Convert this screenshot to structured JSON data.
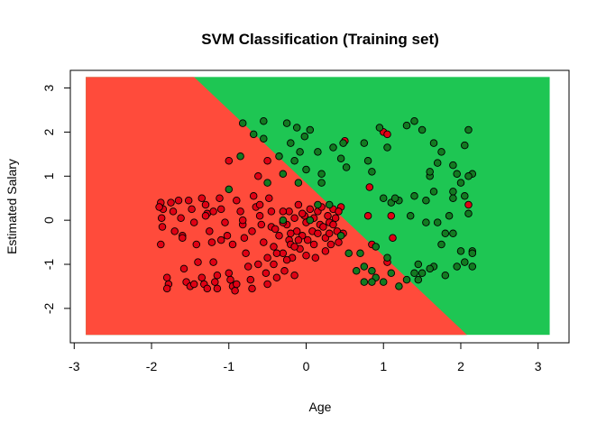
{
  "chart_data": {
    "type": "scatter",
    "title": "SVM Classification (Training set)",
    "xlabel": "Age",
    "ylabel": "Estimated Salary",
    "xlim": [
      -3.05,
      3.4
    ],
    "ylim": [
      -2.78,
      3.4
    ],
    "x_ticks": [
      -3,
      -2,
      -1,
      0,
      1,
      2,
      3
    ],
    "y_ticks": [
      -2,
      -1,
      0,
      1,
      2,
      3
    ],
    "x_tick_labels": [
      "-3",
      "-2",
      "-1",
      "0",
      "1",
      "2",
      "3"
    ],
    "y_tick_labels": [
      "-2",
      "-1",
      "0",
      "1",
      "2",
      "3"
    ],
    "grid": false,
    "legend": "none",
    "decision_region": {
      "x_range": [
        -2.85,
        3.15
      ],
      "y_range": [
        -2.6,
        3.25
      ],
      "boundary": [
        [
          -1.45,
          3.25
        ],
        [
          2.08,
          -2.6
        ]
      ],
      "class_0_color": "#ff4b3b",
      "class_1_color": "#1ec653"
    },
    "series": [
      {
        "class": 0,
        "color": "#e00014",
        "points": [
          [
            -1.88,
            0.4
          ],
          [
            -1.85,
            0.25
          ],
          [
            -1.87,
            0.05
          ],
          [
            -1.86,
            -0.15
          ],
          [
            -1.88,
            -0.55
          ],
          [
            -1.8,
            -1.3
          ],
          [
            -1.78,
            -1.45
          ],
          [
            -1.8,
            -1.55
          ],
          [
            -1.75,
            0.4
          ],
          [
            -1.72,
            0.2
          ],
          [
            -1.7,
            -0.25
          ],
          [
            -1.65,
            0.45
          ],
          [
            -1.62,
            0.05
          ],
          [
            -1.6,
            -0.35
          ],
          [
            -1.58,
            -1.1
          ],
          [
            -1.55,
            -1.4
          ],
          [
            -1.5,
            -1.5
          ],
          [
            -1.52,
            0.45
          ],
          [
            -1.48,
            0.25
          ],
          [
            -1.45,
            -0.05
          ],
          [
            -1.42,
            -0.55
          ],
          [
            -1.4,
            -0.95
          ],
          [
            -1.35,
            -1.3
          ],
          [
            -1.32,
            -1.45
          ],
          [
            -1.3,
            0.35
          ],
          [
            -1.28,
            0.15
          ],
          [
            -1.25,
            -0.25
          ],
          [
            -1.22,
            -0.5
          ],
          [
            -1.2,
            -0.95
          ],
          [
            -1.18,
            -1.4
          ],
          [
            -1.15,
            -1.55
          ],
          [
            -1.12,
            0.5
          ],
          [
            -1.1,
            0.25
          ],
          [
            -1.05,
            -0.05
          ],
          [
            -1.02,
            -0.35
          ],
          [
            -1.0,
            -1.2
          ],
          [
            -0.98,
            -1.35
          ],
          [
            -0.95,
            -1.5
          ],
          [
            -0.92,
            -1.6
          ],
          [
            -0.9,
            0.45
          ],
          [
            -1.35,
            0.5
          ],
          [
            -1.3,
            0.1
          ],
          [
            -1.28,
            -1.55
          ],
          [
            -1.0,
            1.35
          ],
          [
            -0.85,
            0.2
          ],
          [
            -0.82,
            -0.1
          ],
          [
            -0.8,
            -0.4
          ],
          [
            -0.78,
            -0.75
          ],
          [
            -0.75,
            -1.05
          ],
          [
            -0.72,
            -1.35
          ],
          [
            -0.7,
            -1.55
          ],
          [
            -0.68,
            0.55
          ],
          [
            -0.65,
            0.3
          ],
          [
            -0.62,
            1.0
          ],
          [
            -0.6,
            0.35
          ],
          [
            -0.58,
            -0.1
          ],
          [
            -0.55,
            -0.5
          ],
          [
            -0.52,
            -1.2
          ],
          [
            -0.5,
            -1.45
          ],
          [
            -0.5,
            1.35
          ],
          [
            -0.48,
            0.5
          ],
          [
            -0.45,
            0.2
          ],
          [
            -0.45,
            -0.15
          ],
          [
            -0.42,
            -0.6
          ],
          [
            -0.42,
            -1.0
          ],
          [
            -0.38,
            -1.3
          ],
          [
            -0.35,
            -0.35
          ],
          [
            -0.3,
            -0.75
          ],
          [
            -0.28,
            -1.15
          ],
          [
            -0.25,
            -0.1
          ],
          [
            -0.22,
            0.2
          ],
          [
            -0.22,
            -0.45
          ],
          [
            -0.2,
            -0.55
          ],
          [
            -0.18,
            -0.85
          ],
          [
            -0.15,
            -1.25
          ],
          [
            -0.15,
            0.05
          ],
          [
            -0.12,
            -0.25
          ],
          [
            -0.1,
            0.35
          ],
          [
            -0.08,
            -0.65
          ],
          [
            -0.05,
            -0.35
          ],
          [
            -0.02,
            0.1
          ],
          [
            0.0,
            -0.05
          ],
          [
            0.02,
            -0.45
          ],
          [
            0.05,
            0.25
          ],
          [
            0.08,
            -0.25
          ],
          [
            0.1,
            -0.55
          ],
          [
            0.12,
            -0.85
          ],
          [
            0.15,
            0.2
          ],
          [
            0.18,
            -0.1
          ],
          [
            0.2,
            0.3
          ],
          [
            0.22,
            -0.15
          ],
          [
            0.25,
            -0.4
          ],
          [
            0.28,
            0.1
          ],
          [
            0.3,
            -0.05
          ],
          [
            0.32,
            -0.55
          ],
          [
            0.35,
            0.25
          ],
          [
            0.38,
            0.05
          ],
          [
            0.4,
            -0.25
          ],
          [
            0.42,
            -0.5
          ],
          [
            0.45,
            0.3
          ],
          [
            -1.9,
            0.3
          ],
          [
            -1.6,
            -0.4
          ],
          [
            -1.15,
            -1.25
          ],
          [
            -0.95,
            -0.55
          ],
          [
            -0.82,
            0.0
          ],
          [
            -0.7,
            -0.25
          ],
          [
            -0.62,
            -1.0
          ],
          [
            -0.38,
            -0.75
          ],
          [
            -0.25,
            -0.9
          ],
          [
            -0.1,
            -0.45
          ],
          [
            0.5,
            1.8
          ],
          [
            1.0,
            2.0
          ],
          [
            1.05,
            1.95
          ],
          [
            1.1,
            0.1
          ],
          [
            1.12,
            -0.4
          ],
          [
            0.82,
            0.75
          ],
          [
            0.8,
            0.1
          ],
          [
            0.85,
            -0.55
          ],
          [
            1.05,
            -0.95
          ],
          [
            2.1,
            0.35
          ],
          [
            -0.2,
            -0.3
          ],
          [
            -0.05,
            0.15
          ],
          [
            0.15,
            -0.3
          ],
          [
            0.35,
            -0.1
          ],
          [
            0.42,
            0.2
          ],
          [
            -0.3,
            -0.05
          ],
          [
            -0.5,
            -0.85
          ],
          [
            -1.1,
            -0.45
          ],
          [
            -1.45,
            -1.45
          ],
          [
            -0.9,
            -1.45
          ],
          [
            -0.3,
            0.2
          ],
          [
            0.25,
            -0.7
          ],
          [
            0.0,
            -0.8
          ],
          [
            -0.4,
            -0.2
          ],
          [
            -1.2,
            0.2
          ],
          [
            -0.6,
            0.1
          ],
          [
            0.1,
            0.05
          ],
          [
            0.48,
            -0.3
          ],
          [
            0.3,
            -0.3
          ],
          [
            -0.15,
            -0.6
          ]
        ]
      },
      {
        "class": 1,
        "color": "#137a21",
        "points": [
          [
            -0.82,
            2.2
          ],
          [
            -0.55,
            2.25
          ],
          [
            -0.68,
            1.95
          ],
          [
            -0.55,
            1.85
          ],
          [
            -0.25,
            2.2
          ],
          [
            -0.12,
            2.1
          ],
          [
            0.05,
            2.05
          ],
          [
            -0.02,
            1.9
          ],
          [
            -0.2,
            1.75
          ],
          [
            -0.08,
            1.55
          ],
          [
            -0.35,
            1.45
          ],
          [
            -0.15,
            1.35
          ],
          [
            0.15,
            1.55
          ],
          [
            0.35,
            1.65
          ],
          [
            0.45,
            1.4
          ],
          [
            0.0,
            1.15
          ],
          [
            0.2,
            1.05
          ],
          [
            -0.3,
            1.05
          ],
          [
            -0.1,
            0.85
          ],
          [
            0.3,
            0.35
          ],
          [
            0.15,
            0.35
          ],
          [
            0.05,
            0.0
          ],
          [
            0.52,
            1.2
          ],
          [
            0.48,
            1.75
          ],
          [
            0.75,
            1.75
          ],
          [
            0.95,
            2.1
          ],
          [
            1.05,
            1.65
          ],
          [
            1.3,
            2.15
          ],
          [
            1.4,
            2.25
          ],
          [
            1.5,
            2.05
          ],
          [
            1.65,
            1.75
          ],
          [
            1.75,
            1.55
          ],
          [
            1.9,
            1.25
          ],
          [
            2.1,
            2.05
          ],
          [
            2.05,
            1.7
          ],
          [
            2.15,
            1.05
          ],
          [
            2.0,
            0.85
          ],
          [
            1.9,
            0.65
          ],
          [
            2.05,
            0.55
          ],
          [
            2.1,
            0.15
          ],
          [
            1.65,
            0.65
          ],
          [
            1.55,
            0.45
          ],
          [
            1.4,
            0.55
          ],
          [
            1.2,
            0.45
          ],
          [
            1.1,
            0.4
          ],
          [
            1.0,
            0.5
          ],
          [
            1.85,
            0.1
          ],
          [
            1.7,
            -0.05
          ],
          [
            1.55,
            -0.05
          ],
          [
            1.35,
            0.1
          ],
          [
            1.8,
            -0.3
          ],
          [
            1.75,
            -0.55
          ],
          [
            1.9,
            -0.3
          ],
          [
            2.0,
            -0.7
          ],
          [
            2.05,
            -0.95
          ],
          [
            2.15,
            -0.7
          ],
          [
            2.15,
            -1.05
          ],
          [
            1.95,
            -1.05
          ],
          [
            1.8,
            -1.25
          ],
          [
            1.65,
            -1.05
          ],
          [
            1.6,
            -1.1
          ],
          [
            1.5,
            -1.2
          ],
          [
            1.45,
            -1.0
          ],
          [
            1.4,
            -1.2
          ],
          [
            1.3,
            -1.35
          ],
          [
            1.2,
            -1.5
          ],
          [
            1.0,
            -1.4
          ],
          [
            0.9,
            -1.3
          ],
          [
            0.85,
            -1.15
          ],
          [
            0.75,
            -1.05
          ],
          [
            0.65,
            -1.15
          ],
          [
            0.55,
            -0.75
          ],
          [
            0.45,
            -0.35
          ],
          [
            0.7,
            -0.75
          ],
          [
            0.9,
            -0.6
          ],
          [
            1.05,
            -0.85
          ],
          [
            1.1,
            -1.2
          ],
          [
            0.85,
            -1.4
          ],
          [
            0.75,
            -1.4
          ],
          [
            2.15,
            -0.75
          ],
          [
            0.8,
            1.35
          ],
          [
            0.85,
            1.1
          ],
          [
            1.15,
            0.5
          ],
          [
            1.6,
            1.0
          ],
          [
            1.9,
            0.5
          ],
          [
            -0.3,
            0.0
          ],
          [
            -0.85,
            1.45
          ],
          [
            -1.0,
            0.7
          ],
          [
            -0.5,
            0.85
          ],
          [
            0.2,
            0.85
          ],
          [
            1.7,
            1.3
          ],
          [
            1.95,
            1.05
          ],
          [
            2.1,
            1.0
          ],
          [
            1.6,
            1.1
          ],
          [
            1.45,
            -1.35
          ]
        ]
      }
    ]
  }
}
